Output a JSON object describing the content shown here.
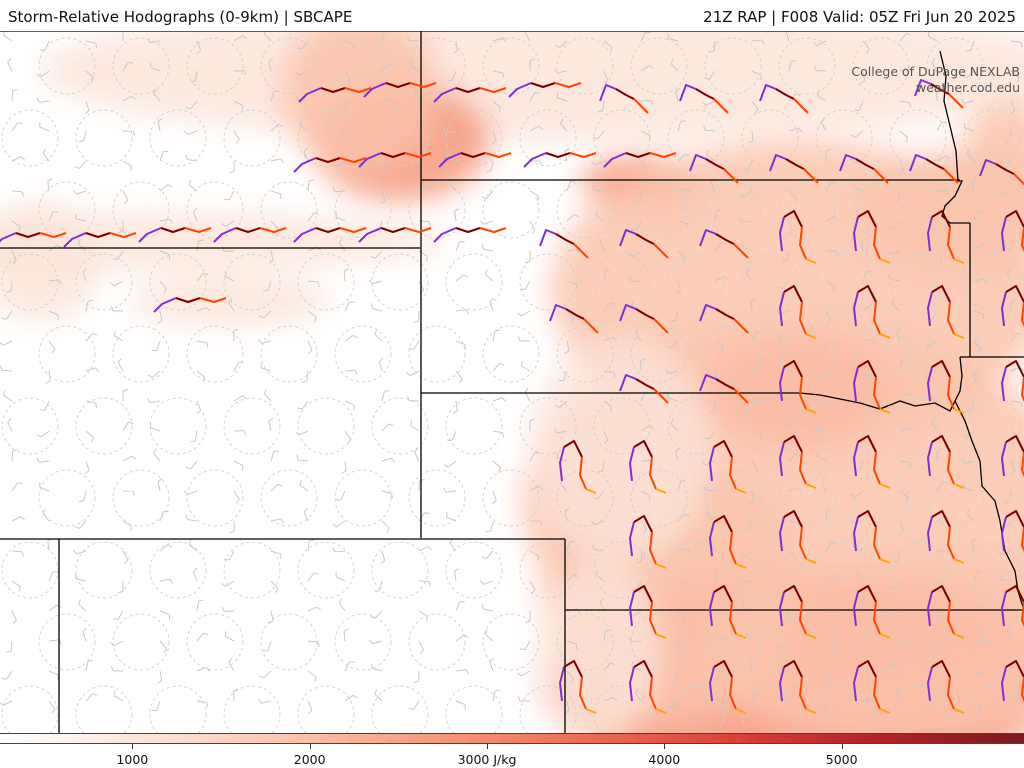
{
  "header": {
    "title": "Storm-Relative Hodographs (0-9km) | SBCAPE",
    "run_info": "21Z RAP | F008 Valid: 05Z Fri Jun 20 2025"
  },
  "credits": {
    "line1": "College of DuPage NEXLAB",
    "line2": "weather.cod.edu"
  },
  "colorbar": {
    "field": "SBCAPE",
    "min": 0,
    "max": 6000,
    "ticks": [
      {
        "value": 1000,
        "label": "1000"
      },
      {
        "value": 2000,
        "label": "2000"
      },
      {
        "value": 3000,
        "label": "3000 J/kg"
      },
      {
        "value": 4000,
        "label": "4000"
      },
      {
        "value": 5000,
        "label": "5000"
      }
    ],
    "colors": [
      "#ffffff",
      "#fde4d8",
      "#fbc4ad",
      "#f6987a",
      "#ee6b55",
      "#d9433a",
      "#b32027",
      "#7a1a1d"
    ]
  },
  "hodograph_colors": {
    "0-1km": "#7f2fd6",
    "1-3km": "#7a0000",
    "3-6km": "#ff4500",
    "6-9km": "#ffa500"
  }
}
